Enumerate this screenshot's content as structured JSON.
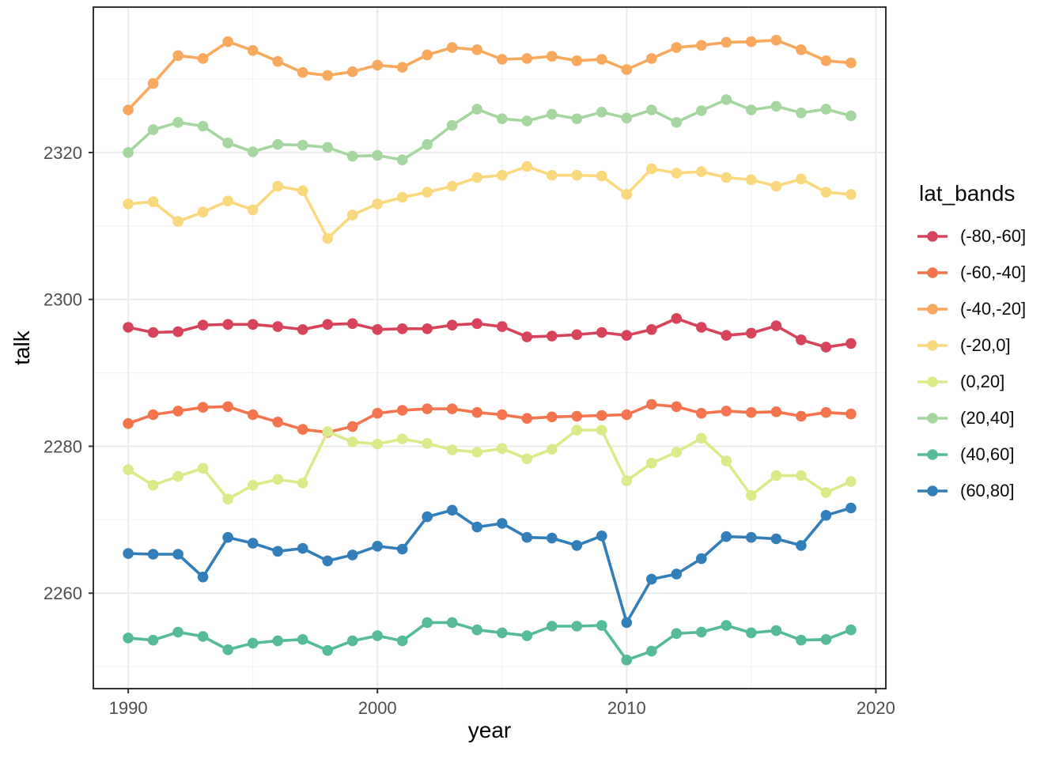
{
  "chart_data": {
    "type": "line",
    "title": "",
    "xlabel": "year",
    "ylabel": "talk",
    "legend_title": "lat_bands",
    "legend_position": "right",
    "grid": true,
    "x_ticks": [
      1990,
      2000,
      2010,
      2020
    ],
    "y_ticks": [
      2260,
      2280,
      2300,
      2320
    ],
    "x_minor_ticks": [
      1995,
      2005,
      2015
    ],
    "y_minor_ticks": [
      2250,
      2270,
      2290,
      2310,
      2330
    ],
    "xlim": [
      1988.6,
      2020.4
    ],
    "ylim": [
      2247.0,
      2339.8
    ],
    "x": [
      1990,
      1991,
      1992,
      1993,
      1994,
      1995,
      1996,
      1997,
      1998,
      1999,
      2000,
      2001,
      2002,
      2003,
      2004,
      2005,
      2006,
      2007,
      2008,
      2009,
      2010,
      2011,
      2012,
      2013,
      2014,
      2015,
      2016,
      2017,
      2018,
      2019
    ],
    "series": [
      {
        "name": "(-80,-60]",
        "color": "#d6435a",
        "values": [
          2296.2,
          2295.5,
          2295.6,
          2296.5,
          2296.6,
          2296.6,
          2296.3,
          2295.9,
          2296.6,
          2296.7,
          2295.9,
          2296.0,
          2296.0,
          2296.5,
          2296.7,
          2296.3,
          2294.9,
          2295.0,
          2295.2,
          2295.5,
          2295.1,
          2295.9,
          2297.4,
          2296.2,
          2295.1,
          2295.4,
          2296.4,
          2294.5,
          2293.5,
          2294.0
        ]
      },
      {
        "name": "(-60,-40]",
        "color": "#f4744e",
        "values": [
          2283.1,
          2284.3,
          2284.8,
          2285.3,
          2285.4,
          2284.3,
          2283.3,
          2282.3,
          2281.9,
          2282.7,
          2284.5,
          2284.9,
          2285.1,
          2285.1,
          2284.6,
          2284.3,
          2283.8,
          2284.0,
          2284.1,
          2284.2,
          2284.3,
          2285.7,
          2285.4,
          2284.5,
          2284.8,
          2284.6,
          2284.7,
          2284.1,
          2284.6,
          2284.4
        ]
      },
      {
        "name": "(-40,-20]",
        "color": "#f9a95e",
        "values": [
          2325.8,
          2329.4,
          2333.2,
          2332.8,
          2335.1,
          2333.9,
          2332.4,
          2330.9,
          2330.5,
          2331.0,
          2331.9,
          2331.6,
          2333.3,
          2334.3,
          2334.0,
          2332.7,
          2332.8,
          2333.1,
          2332.5,
          2332.7,
          2331.3,
          2332.8,
          2334.3,
          2334.6,
          2335.0,
          2335.1,
          2335.3,
          2334.0,
          2332.5,
          2332.2
        ]
      },
      {
        "name": "(-20,0]",
        "color": "#fad87d",
        "values": [
          2313.0,
          2313.3,
          2310.6,
          2311.9,
          2313.4,
          2312.2,
          2315.4,
          2314.8,
          2308.3,
          2311.5,
          2313.0,
          2313.9,
          2314.6,
          2315.4,
          2316.6,
          2316.9,
          2318.1,
          2316.9,
          2316.9,
          2316.8,
          2314.3,
          2317.8,
          2317.2,
          2317.4,
          2316.6,
          2316.3,
          2315.4,
          2316.4,
          2314.6,
          2314.3
        ]
      },
      {
        "name": "(0,20]",
        "color": "#dcea8a",
        "values": [
          2276.8,
          2274.7,
          2275.9,
          2277.0,
          2272.8,
          2274.7,
          2275.5,
          2275.0,
          2282.0,
          2280.6,
          2280.3,
          2281.0,
          2280.4,
          2279.5,
          2279.2,
          2279.7,
          2278.3,
          2279.6,
          2282.2,
          2282.2,
          2275.3,
          2277.7,
          2279.2,
          2281.1,
          2278.0,
          2273.3,
          2276.0,
          2276.0,
          2273.7,
          2275.2
        ]
      },
      {
        "name": "(20,40]",
        "color": "#a5d69f",
        "values": [
          2320.0,
          2323.1,
          2324.1,
          2323.6,
          2321.3,
          2320.1,
          2321.1,
          2321.0,
          2320.7,
          2319.5,
          2319.6,
          2319.0,
          2321.1,
          2323.7,
          2325.9,
          2324.6,
          2324.3,
          2325.2,
          2324.6,
          2325.5,
          2324.7,
          2325.8,
          2324.1,
          2325.7,
          2327.2,
          2325.8,
          2326.3,
          2325.4,
          2325.9,
          2325.0
        ]
      },
      {
        "name": "(40,60]",
        "color": "#54ba98",
        "values": [
          2253.9,
          2253.6,
          2254.7,
          2254.1,
          2252.3,
          2253.2,
          2253.5,
          2253.7,
          2252.2,
          2253.5,
          2254.2,
          2253.5,
          2256.0,
          2256.0,
          2255.0,
          2254.6,
          2254.2,
          2255.5,
          2255.5,
          2255.6,
          2250.9,
          2252.1,
          2254.5,
          2254.7,
          2255.6,
          2254.6,
          2254.9,
          2253.6,
          2253.7,
          2255.0
        ]
      },
      {
        "name": "(60,80]",
        "color": "#327eb8",
        "values": [
          2265.4,
          2265.3,
          2265.3,
          2262.2,
          2267.6,
          2266.8,
          2265.7,
          2266.1,
          2264.4,
          2265.2,
          2266.4,
          2266.0,
          2270.4,
          2271.3,
          2269.0,
          2269.5,
          2267.6,
          2267.5,
          2266.5,
          2267.8,
          2256.0,
          2261.9,
          2262.6,
          2264.7,
          2267.7,
          2267.6,
          2267.4,
          2266.5,
          2270.6,
          2271.6
        ]
      }
    ]
  },
  "theme": {
    "background": "#ffffff",
    "panel_background": "#ffffff",
    "panel_border": "#333333",
    "grid_major": "#ebebeb",
    "grid_minor": "#f3f3f3",
    "tick_mark_color": "#333333",
    "tick_label_color": "#4d4d4d",
    "axis_title_color": "#000000",
    "legend_text_color": "#0a0a0a"
  }
}
